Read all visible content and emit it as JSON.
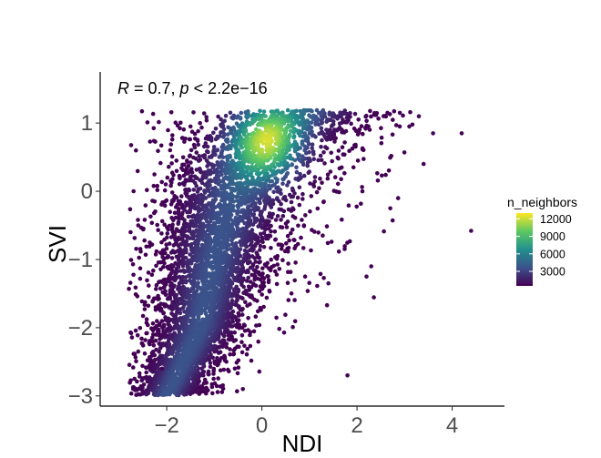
{
  "chart_data": {
    "type": "scatter",
    "xlabel": "NDI",
    "ylabel": "SVI",
    "xlim": [
      -3.4,
      5.1
    ],
    "ylim": [
      -3.15,
      1.75
    ],
    "x_ticks": [
      -2,
      0,
      2,
      4
    ],
    "x_tick_labels": [
      "−2",
      "0",
      "2",
      "4"
    ],
    "y_ticks": [
      -3,
      -2,
      -1,
      0,
      1
    ],
    "y_tick_labels": [
      "−3",
      "−2",
      "−1",
      "0",
      "1"
    ],
    "grid": false,
    "annotation": {
      "r_symbol": "R",
      "r_text": " = 0.7, ",
      "p_symbol": "p",
      "p_text": " < 2.2e−16"
    },
    "color_scale": {
      "name": "n_neighbors",
      "palette": "viridis",
      "colors": [
        "#440154",
        "#3b528b",
        "#21908c",
        "#5dc863",
        "#fde725"
      ],
      "min": 500,
      "max": 13000,
      "breaks": [
        3000,
        6000,
        9000,
        12000
      ],
      "break_labels": [
        "3000",
        "6000",
        "9000",
        "12000"
      ]
    },
    "legend_position": "right",
    "trend": {
      "description": "dense point cloud rising from lower left to upper middle, saturating near SVI 1.2",
      "points": [
        {
          "x": -2.0,
          "y": -3.0
        },
        {
          "x": -1.3,
          "y": -2.0
        },
        {
          "x": -1.0,
          "y": -1.0
        },
        {
          "x": -0.6,
          "y": 0.0
        },
        {
          "x": 0.0,
          "y": 0.7
        },
        {
          "x": 0.8,
          "y": 1.15
        }
      ]
    },
    "points": [
      {
        "x": -2.6,
        "y": -0.5,
        "n": 600
      },
      {
        "x": 4.4,
        "y": -0.58,
        "n": 600
      },
      {
        "x": 4.2,
        "y": 0.85,
        "n": 600
      },
      {
        "x": 3.3,
        "y": 1.1,
        "n": 700
      },
      {
        "x": 3.6,
        "y": 0.85,
        "n": 700
      },
      {
        "x": 2.9,
        "y": 1.15,
        "n": 800
      },
      {
        "x": 3.1,
        "y": 0.95,
        "n": 700
      },
      {
        "x": 3.4,
        "y": 0.4,
        "n": 600
      },
      {
        "x": 2.7,
        "y": -0.25,
        "n": 600
      },
      {
        "x": 2.3,
        "y": -1.1,
        "n": 600
      },
      {
        "x": 2.2,
        "y": -1.25,
        "n": 600
      },
      {
        "x": 1.8,
        "y": -2.7,
        "n": 600
      },
      {
        "x": 1.4,
        "y": -1.35,
        "n": 700
      },
      {
        "x": -2.1,
        "y": -2.6,
        "n": 700
      },
      {
        "x": -2.6,
        "y": -2.35,
        "n": 700
      },
      {
        "x": -1.5,
        "y": 0.95,
        "n": 700
      },
      {
        "x": -1.6,
        "y": 0.3,
        "n": 700
      },
      {
        "x": -1.3,
        "y": 1.0,
        "n": 800
      },
      {
        "x": -0.4,
        "y": -2.9,
        "n": 700
      }
    ]
  }
}
